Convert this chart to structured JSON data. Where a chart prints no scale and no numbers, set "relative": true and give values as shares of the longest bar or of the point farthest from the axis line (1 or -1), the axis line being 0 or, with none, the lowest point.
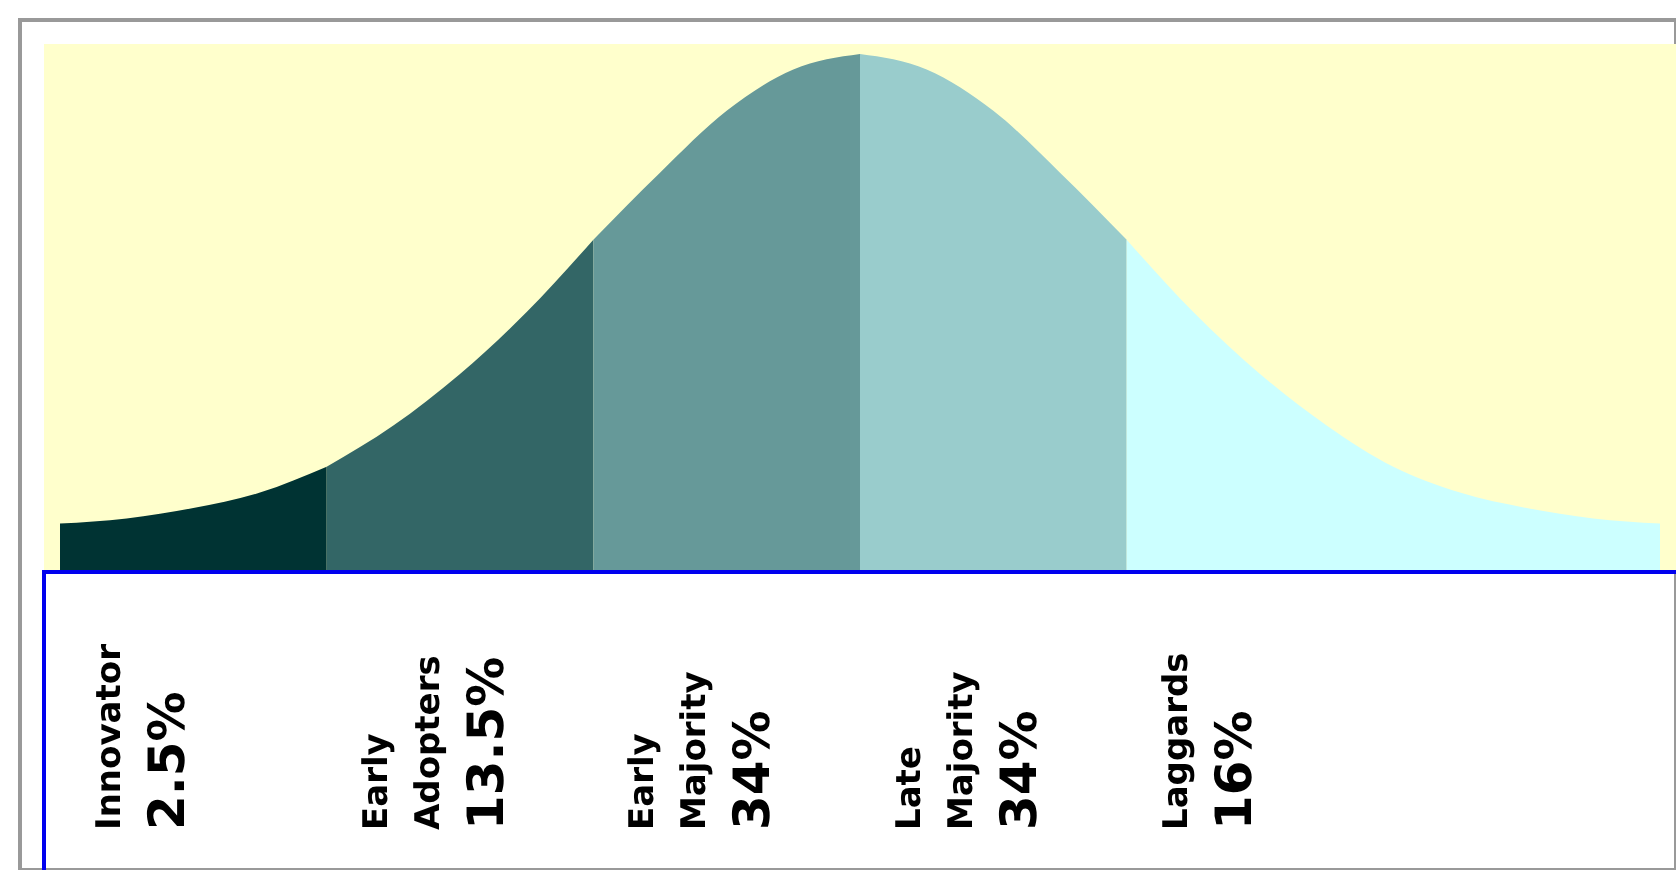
{
  "chart_data": {
    "type": "area",
    "relative": true,
    "categories": [
      null,
      null,
      null,
      null,
      null,
      null,
      null,
      null,
      null,
      null,
      null,
      null,
      null,
      null,
      null,
      null,
      null,
      null,
      null,
      null,
      null,
      null,
      null,
      null,
      null
    ],
    "series": [
      {
        "name": "Innovator",
        "color": "#003333",
        "values": [
          0.09,
          0.1,
          0.12,
          0.15,
          0.2,
          null,
          null,
          null,
          null,
          null,
          null,
          null,
          null,
          null,
          null,
          null,
          null,
          null,
          null,
          null,
          null,
          null,
          null,
          null,
          null
        ]
      },
      {
        "name": "Early Adopters",
        "color": "#336666",
        "values": [
          null,
          null,
          null,
          null,
          0.2,
          0.28,
          0.38,
          0.5,
          0.64,
          null,
          null,
          null,
          null,
          null,
          null,
          null,
          null,
          null,
          null,
          null,
          null,
          null,
          null,
          null,
          null
        ]
      },
      {
        "name": "Early Majority",
        "color": "#669999",
        "values": [
          null,
          null,
          null,
          null,
          null,
          null,
          null,
          null,
          0.64,
          0.77,
          0.89,
          0.97,
          1.0,
          null,
          null,
          null,
          null,
          null,
          null,
          null,
          null,
          null,
          null,
          null,
          null
        ]
      },
      {
        "name": "Late Majority",
        "color": "#99cccc",
        "values": [
          null,
          null,
          null,
          null,
          null,
          null,
          null,
          null,
          null,
          null,
          null,
          null,
          1.0,
          0.97,
          0.89,
          0.77,
          0.64,
          null,
          null,
          null,
          null,
          null,
          null,
          null,
          null
        ]
      },
      {
        "name": "Laggards",
        "color": "#ccffff",
        "values": [
          null,
          null,
          null,
          null,
          null,
          null,
          null,
          null,
          null,
          null,
          null,
          null,
          null,
          null,
          null,
          null,
          0.64,
          0.5,
          0.38,
          0.28,
          0.2,
          0.15,
          0.12,
          0.1,
          0.09
        ]
      }
    ],
    "annotations": [
      "2.5%",
      "13.5%",
      "34%",
      "34%",
      "16%"
    ]
  }
}
